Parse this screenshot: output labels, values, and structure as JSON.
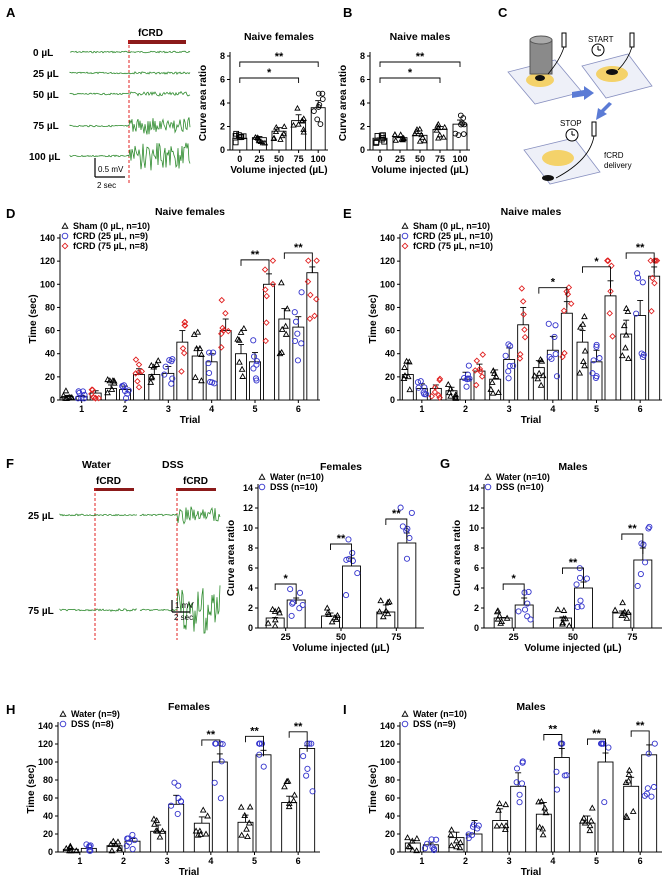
{
  "panels": {
    "A": {
      "letter": "A",
      "trace_labels": [
        "0 µL",
        "25 µL",
        "50 µL",
        "75 µL",
        "100 µL"
      ],
      "stim_label": "fCRD",
      "scale_v": "0.5 mV",
      "scale_t": "2 sec"
    },
    "C": {
      "letter": "C",
      "start": "START",
      "stop": "STOP",
      "delivery": "fCRD\ndelivery"
    },
    "F": {
      "letter": "F",
      "col_labels": [
        "Water",
        "DSS"
      ],
      "stim_label": "fCRD",
      "row_labels": [
        "25 µL",
        "75 µL"
      ],
      "scale_v": "1 mV",
      "scale_t": "2 sec"
    }
  },
  "colors": {
    "trace_green": "#2e8b2e",
    "stim_red": "#8b1a1a",
    "blue": "#3333cc",
    "red": "#e02020",
    "black": "#000000"
  },
  "chart_data": [
    {
      "id": "A-plot",
      "letter": "",
      "type": "bar",
      "title": "Naive females",
      "categories": [
        "0",
        "25",
        "50",
        "75",
        "100"
      ],
      "values": [
        1.0,
        1.05,
        1.6,
        2.5,
        3.6
      ],
      "errors": [
        0.05,
        0.1,
        0.3,
        0.5,
        0.6
      ],
      "ylim": [
        0,
        8
      ],
      "yticks": [
        0,
        2,
        4,
        6,
        8
      ],
      "ylabel": "Curve area ratio",
      "xlabel": "Volume injected (µL)",
      "sig": [
        {
          "from": 0,
          "to": 3,
          "label": "*"
        },
        {
          "from": 0,
          "to": 4,
          "label": "**"
        }
      ]
    },
    {
      "id": "B-plot",
      "letter": "B",
      "type": "bar",
      "title": "Naive males",
      "categories": [
        "0",
        "25",
        "50",
        "75",
        "100"
      ],
      "values": [
        1.0,
        1.05,
        1.25,
        1.75,
        2.2
      ],
      "errors": [
        0.03,
        0.05,
        0.15,
        0.25,
        0.35
      ],
      "ylim": [
        0,
        8
      ],
      "yticks": [
        0,
        2,
        4,
        6,
        8
      ],
      "ylabel": "Curve area ratio",
      "xlabel": "Volume injected (µL)",
      "sig": [
        {
          "from": 0,
          "to": 3,
          "label": "*"
        },
        {
          "from": 0,
          "to": 4,
          "label": "**"
        }
      ]
    },
    {
      "id": "D-plot",
      "letter": "D",
      "type": "bar",
      "title": "Naive females",
      "categories": [
        "1",
        "2",
        "3",
        "4",
        "5",
        "6"
      ],
      "series": [
        {
          "name": "Sham (0 µL, n=10)",
          "marker": "triangle",
          "color": "#000000",
          "values": [
            3,
            10,
            22,
            38,
            40,
            70
          ],
          "errors": [
            1,
            3,
            6,
            7,
            8,
            9
          ]
        },
        {
          "name": "fCRD (25 µL, n=9)",
          "marker": "circle",
          "color": "#3333cc",
          "values": [
            3,
            9,
            23,
            33,
            33,
            63
          ],
          "errors": [
            1,
            3,
            6,
            7,
            8,
            9
          ]
        },
        {
          "name": "fCRD (75 µL, n=8)",
          "marker": "diamond",
          "color": "#e02020",
          "values": [
            6,
            22,
            50,
            60,
            100,
            110
          ],
          "errors": [
            2,
            5,
            10,
            10,
            9,
            5
          ]
        }
      ],
      "ylim": [
        0,
        140
      ],
      "yticks": [
        0,
        20,
        40,
        60,
        80,
        100,
        120,
        140
      ],
      "ylabel": "Time (sec)",
      "xlabel": "Trial",
      "sig": [
        {
          "cat": 4,
          "label": "**"
        },
        {
          "cat": 5,
          "label": "**"
        }
      ]
    },
    {
      "id": "E-plot",
      "letter": "E",
      "type": "bar",
      "title": "Naive males",
      "categories": [
        "1",
        "2",
        "3",
        "4",
        "5",
        "6"
      ],
      "series": [
        {
          "name": "Sham (0 µL, n=10)",
          "marker": "triangle",
          "color": "#000000",
          "values": [
            22,
            8,
            18,
            28,
            50,
            57
          ],
          "errors": [
            10,
            3,
            8,
            6,
            10,
            12
          ]
        },
        {
          "name": "fCRD (25 µL, n=10)",
          "marker": "circle",
          "color": "#3333cc",
          "values": [
            10,
            18,
            35,
            43,
            33,
            73
          ],
          "errors": [
            4,
            6,
            10,
            12,
            10,
            13
          ]
        },
        {
          "name": "fCRD (75 µL, n=10)",
          "marker": "diamond",
          "color": "#e02020",
          "values": [
            10,
            25,
            65,
            75,
            90,
            107
          ],
          "errors": [
            3,
            6,
            15,
            10,
            13,
            8
          ]
        }
      ],
      "ylim": [
        0,
        140
      ],
      "yticks": [
        0,
        20,
        40,
        60,
        80,
        100,
        120,
        140
      ],
      "ylabel": "Time (sec)",
      "xlabel": "Trial",
      "sig": [
        {
          "cat": 3,
          "label": "*"
        },
        {
          "cat": 4,
          "label": "*"
        },
        {
          "cat": 5,
          "label": "**"
        }
      ]
    },
    {
      "id": "F-plot",
      "letter": "",
      "type": "bar",
      "title": "Females",
      "categories": [
        "25",
        "50",
        "75"
      ],
      "series": [
        {
          "name": "Water (n=10)",
          "marker": "triangle",
          "color": "#000000",
          "values": [
            1.0,
            1.2,
            1.6
          ],
          "errors": [
            0.05,
            0.3,
            0.7
          ]
        },
        {
          "name": "DSS (n=10)",
          "marker": "circle",
          "color": "#3333cc",
          "values": [
            2.8,
            6.2,
            8.5
          ],
          "errors": [
            0.2,
            0.8,
            1.0
          ]
        }
      ],
      "ylim": [
        0,
        14
      ],
      "yticks": [
        0,
        2,
        4,
        6,
        8,
        10,
        12,
        14
      ],
      "ylabel": "Curve area ratio",
      "xlabel": "Volume injected (µL)",
      "sig": [
        {
          "cat": 0,
          "label": "*"
        },
        {
          "cat": 1,
          "label": "**"
        },
        {
          "cat": 2,
          "label": "**"
        }
      ]
    },
    {
      "id": "G-plot",
      "letter": "G",
      "type": "bar",
      "title": "Males",
      "categories": [
        "25",
        "50",
        "75"
      ],
      "series": [
        {
          "name": "Water (n=10)",
          "marker": "triangle",
          "color": "#000000",
          "values": [
            1.0,
            1.0,
            1.5
          ],
          "errors": [
            0.05,
            0.1,
            0.2
          ]
        },
        {
          "name": "DSS (n=10)",
          "marker": "circle",
          "color": "#3333cc",
          "values": [
            2.3,
            4.0,
            6.8
          ],
          "errors": [
            0.7,
            0.6,
            1.2
          ]
        }
      ],
      "ylim": [
        0,
        14
      ],
      "yticks": [
        0,
        2,
        4,
        6,
        8,
        10,
        12,
        14
      ],
      "ylabel": "Curve area ratio",
      "xlabel": "Volume injected (µL)",
      "sig": [
        {
          "cat": 0,
          "label": "*"
        },
        {
          "cat": 1,
          "label": "**"
        },
        {
          "cat": 2,
          "label": "**"
        }
      ]
    },
    {
      "id": "H-plot",
      "letter": "H",
      "type": "bar",
      "title": "Females",
      "categories": [
        "1",
        "2",
        "3",
        "4",
        "5",
        "6"
      ],
      "series": [
        {
          "name": "Water (n=9)",
          "marker": "triangle",
          "color": "#000000",
          "values": [
            3,
            7,
            23,
            32,
            33,
            55
          ],
          "errors": [
            1,
            2,
            7,
            7,
            8,
            7
          ]
        },
        {
          "name": "DSS (n=8)",
          "marker": "circle",
          "color": "#3333cc",
          "values": [
            4,
            12,
            53,
            100,
            108,
            115
          ],
          "errors": [
            1,
            3,
            10,
            9,
            5,
            3
          ]
        }
      ],
      "ylim": [
        0,
        140
      ],
      "yticks": [
        0,
        20,
        40,
        60,
        80,
        100,
        120,
        140
      ],
      "ylabel": "Time (sec)",
      "xlabel": "Trial",
      "sig": [
        {
          "cat": 3,
          "label": "**"
        },
        {
          "cat": 4,
          "label": "**"
        },
        {
          "cat": 5,
          "label": "**"
        }
      ]
    },
    {
      "id": "I-plot",
      "letter": "I",
      "type": "bar",
      "title": "Males",
      "categories": [
        "1",
        "2",
        "3",
        "4",
        "5",
        "6"
      ],
      "series": [
        {
          "name": "Water (n=10)",
          "marker": "triangle",
          "color": "#000000",
          "values": [
            10,
            16,
            35,
            42,
            32,
            73
          ],
          "errors": [
            3,
            6,
            13,
            13,
            8,
            10
          ]
        },
        {
          "name": "DSS (n=9)",
          "marker": "circle",
          "color": "#3333cc",
          "values": [
            8,
            20,
            73,
            105,
            100,
            108
          ],
          "errors": [
            2,
            15,
            15,
            10,
            10,
            11
          ]
        }
      ],
      "ylim": [
        0,
        140
      ],
      "yticks": [
        0,
        20,
        40,
        60,
        80,
        100,
        120,
        140
      ],
      "ylabel": "Time (sec)",
      "xlabel": "Trial",
      "sig": [
        {
          "cat": 3,
          "label": "**"
        },
        {
          "cat": 4,
          "label": "**"
        },
        {
          "cat": 5,
          "label": "**"
        }
      ]
    }
  ]
}
